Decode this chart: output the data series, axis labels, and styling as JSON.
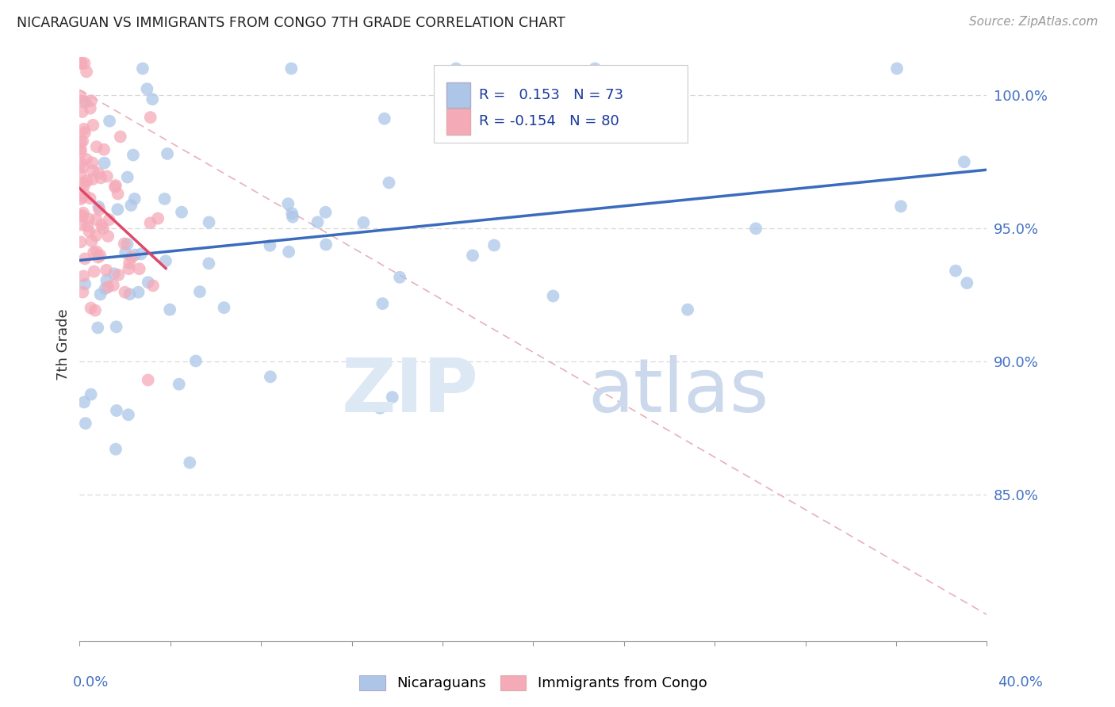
{
  "title": "NICARAGUAN VS IMMIGRANTS FROM CONGO 7TH GRADE CORRELATION CHART",
  "source": "Source: ZipAtlas.com",
  "ylabel": "7th Grade",
  "xmin": 0.0,
  "xmax": 40.0,
  "ymin": 79.5,
  "ymax": 101.8,
  "blue_R": 0.153,
  "blue_N": 73,
  "pink_R": -0.154,
  "pink_N": 80,
  "blue_color": "#adc6e8",
  "pink_color": "#f5aab8",
  "blue_line_color": "#3a6bbc",
  "pink_line_color": "#e0486a",
  "ref_line_color": "#e8b0bc",
  "grid_color": "#d8d8d8",
  "ytick_color": "#4472c4",
  "legend_blue_label": "Nicaraguans",
  "legend_pink_label": "Immigrants from Congo",
  "blue_line_x0": 0.0,
  "blue_line_y0": 93.8,
  "blue_line_x1": 40.0,
  "blue_line_y1": 97.2,
  "pink_line_x0": 0.0,
  "pink_line_y0": 96.5,
  "pink_line_x1": 3.8,
  "pink_line_y1": 93.5,
  "ref_line_x0": 0.0,
  "ref_line_y0": 100.2,
  "ref_line_x1": 40.0,
  "ref_line_y1": 80.5,
  "xtick_positions": [
    0,
    4,
    8,
    12,
    16,
    20,
    24,
    28,
    32,
    36,
    40
  ],
  "ytick_positions": [
    85.0,
    90.0,
    95.0,
    100.0
  ],
  "ytick_labels": [
    "85.0%",
    "90.0%",
    "95.0%",
    "100.0%"
  ]
}
